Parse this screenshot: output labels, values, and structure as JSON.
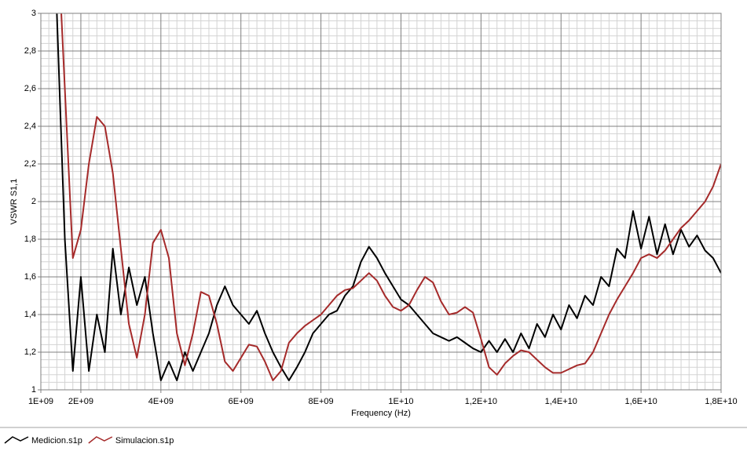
{
  "chart_data": {
    "type": "line",
    "x_label": "Frequency (Hz)",
    "y_label": "VSWR S1,1",
    "xlim": [
      1000000000.0,
      18000000000.0
    ],
    "ylim": [
      1,
      3
    ],
    "xticks": [
      {
        "value": 1000000000.0,
        "label": "1E+09"
      },
      {
        "value": 2000000000.0,
        "label": "2E+09"
      },
      {
        "value": 4000000000.0,
        "label": "4E+09"
      },
      {
        "value": 6000000000.0,
        "label": "6E+09"
      },
      {
        "value": 8000000000.0,
        "label": "8E+09"
      },
      {
        "value": 10000000000.0,
        "label": "1E+10"
      },
      {
        "value": 12000000000.0,
        "label": "1,2E+10"
      },
      {
        "value": 14000000000.0,
        "label": "1,4E+10"
      },
      {
        "value": 16000000000.0,
        "label": "1,6E+10"
      },
      {
        "value": 18000000000.0,
        "label": "1,8E+10"
      }
    ],
    "yticks": [
      1,
      {
        "value": 1.2,
        "label": "1,2"
      },
      {
        "value": 1.4,
        "label": "1,4"
      },
      {
        "value": 1.6,
        "label": "1,6"
      },
      {
        "value": 1.8,
        "label": "1,8"
      },
      2,
      {
        "value": 2.2,
        "label": "2,2"
      },
      {
        "value": 2.4,
        "label": "2,4"
      },
      {
        "value": 2.6,
        "label": "2,6"
      },
      {
        "value": 2.8,
        "label": "2,8"
      },
      3
    ],
    "grid": true,
    "x": [
      1400000000.0,
      1600000000.0,
      1800000000.0,
      2000000000.0,
      2200000000.0,
      2400000000.0,
      2600000000.0,
      2800000000.0,
      3000000000.0,
      3200000000.0,
      3400000000.0,
      3600000000.0,
      3800000000.0,
      4000000000.0,
      4200000000.0,
      4400000000.0,
      4600000000.0,
      4800000000.0,
      5000000000.0,
      5200000000.0,
      5400000000.0,
      5600000000.0,
      5800000000.0,
      6000000000.0,
      6200000000.0,
      6400000000.0,
      6600000000.0,
      6800000000.0,
      7000000000.0,
      7200000000.0,
      7400000000.0,
      7600000000.0,
      7800000000.0,
      8000000000.0,
      8200000000.0,
      8400000000.0,
      8600000000.0,
      8800000000.0,
      9000000000.0,
      9200000000.0,
      9400000000.0,
      9600000000.0,
      9800000000.0,
      10000000000.0,
      10200000000.0,
      10400000000.0,
      10600000000.0,
      10800000000.0,
      11000000000.0,
      11200000000.0,
      11400000000.0,
      11600000000.0,
      11800000000.0,
      12000000000.0,
      12200000000.0,
      12400000000.0,
      12600000000.0,
      12800000000.0,
      13000000000.0,
      13200000000.0,
      13400000000.0,
      13600000000.0,
      13800000000.0,
      14000000000.0,
      14200000000.0,
      14400000000.0,
      14600000000.0,
      14800000000.0,
      15000000000.0,
      15200000000.0,
      15400000000.0,
      15600000000.0,
      15800000000.0,
      16000000000.0,
      16200000000.0,
      16400000000.0,
      16600000000.0,
      16800000000.0,
      17000000000.0,
      17200000000.0,
      17400000000.0,
      17600000000.0,
      17800000000.0,
      18000000000.0
    ],
    "series": [
      {
        "name": "Medicion.s1p",
        "color": "#000000",
        "values": [
          3.0,
          1.8,
          1.1,
          1.6,
          1.1,
          1.4,
          1.2,
          1.75,
          1.4,
          1.65,
          1.45,
          1.6,
          1.3,
          1.05,
          1.15,
          1.05,
          1.2,
          1.1,
          1.2,
          1.3,
          1.45,
          1.55,
          1.45,
          1.4,
          1.35,
          1.42,
          1.3,
          1.2,
          1.12,
          1.05,
          1.12,
          1.2,
          1.3,
          1.35,
          1.4,
          1.42,
          1.5,
          1.55,
          1.68,
          1.76,
          1.7,
          1.62,
          1.55,
          1.48,
          1.45,
          1.4,
          1.35,
          1.3,
          1.28,
          1.26,
          1.28,
          1.25,
          1.22,
          1.2,
          1.26,
          1.2,
          1.27,
          1.2,
          1.3,
          1.22,
          1.35,
          1.28,
          1.4,
          1.32,
          1.45,
          1.38,
          1.5,
          1.45,
          1.6,
          1.55,
          1.75,
          1.7,
          1.95,
          1.75,
          1.92,
          1.72,
          1.88,
          1.72,
          1.85,
          1.76,
          1.82,
          1.74,
          1.7,
          1.62
        ]
      },
      {
        "name": "Simulacion.s1p",
        "color": "#a52a2a",
        "values": [
          3.5,
          2.6,
          1.7,
          1.85,
          2.2,
          2.45,
          2.4,
          2.15,
          1.75,
          1.35,
          1.17,
          1.4,
          1.78,
          1.85,
          1.7,
          1.3,
          1.13,
          1.3,
          1.52,
          1.5,
          1.35,
          1.15,
          1.1,
          1.17,
          1.24,
          1.23,
          1.15,
          1.05,
          1.1,
          1.25,
          1.3,
          1.34,
          1.37,
          1.4,
          1.45,
          1.5,
          1.53,
          1.54,
          1.58,
          1.62,
          1.58,
          1.5,
          1.44,
          1.42,
          1.45,
          1.53,
          1.6,
          1.57,
          1.47,
          1.4,
          1.41,
          1.44,
          1.41,
          1.27,
          1.12,
          1.08,
          1.14,
          1.18,
          1.21,
          1.2,
          1.16,
          1.12,
          1.09,
          1.09,
          1.11,
          1.13,
          1.14,
          1.2,
          1.3,
          1.4,
          1.48,
          1.55,
          1.62,
          1.7,
          1.72,
          1.7,
          1.74,
          1.8,
          1.86,
          1.9,
          1.95,
          2.0,
          2.08,
          2.2
        ]
      }
    ]
  }
}
